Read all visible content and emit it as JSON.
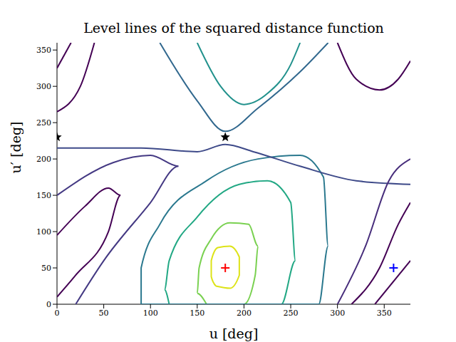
{
  "chart_data": {
    "type": "contour",
    "title": "Level lines of the squared distance function",
    "x_label": "u [deg]",
    "y_label": "u′ [deg]",
    "xlim": [
      0,
      378
    ],
    "ylim": [
      0,
      360
    ],
    "xticks": [
      0,
      50,
      100,
      150,
      200,
      250,
      300,
      350
    ],
    "yticks": [
      0,
      50,
      100,
      150,
      200,
      250,
      300,
      350
    ],
    "grid": false,
    "series": [
      {
        "type": "line",
        "color": "#dde318",
        "values": [
          [
            170,
            25
          ],
          [
            185,
            22
          ],
          [
            195,
            40
          ],
          [
            195,
            65
          ],
          [
            185,
            80
          ],
          [
            172,
            78
          ],
          [
            165,
            60
          ],
          [
            165,
            38
          ],
          [
            170,
            25
          ]
        ]
      },
      {
        "type": "line",
        "color": "#7ad151",
        "values": [
          [
            160,
            0
          ],
          [
            200,
            0
          ],
          [
            212,
            40
          ],
          [
            215,
            80
          ],
          [
            205,
            110
          ],
          [
            185,
            112
          ],
          [
            165,
            90
          ],
          [
            152,
            50
          ],
          [
            150,
            15
          ],
          [
            160,
            0
          ]
        ]
      },
      {
        "type": "line",
        "color": "#22a884",
        "values": [
          [
            120,
            0
          ],
          [
            240,
            0
          ],
          [
            255,
            60
          ],
          [
            250,
            140
          ],
          [
            225,
            170
          ],
          [
            195,
            165
          ],
          [
            150,
            120
          ],
          [
            120,
            60
          ],
          [
            115,
            20
          ],
          [
            120,
            0
          ]
        ]
      },
      {
        "type": "line",
        "color": "#2a788e",
        "values": [
          [
            90,
            0
          ],
          [
            280,
            0
          ],
          [
            290,
            80
          ],
          [
            285,
            175
          ],
          [
            260,
            205
          ],
          [
            215,
            200
          ],
          [
            160,
            170
          ],
          [
            110,
            110
          ],
          [
            90,
            50
          ],
          [
            90,
            0
          ]
        ]
      },
      {
        "type": "line",
        "color": "#21918c",
        "values": [
          [
            150,
            360
          ],
          [
            175,
            300
          ],
          [
            200,
            275
          ],
          [
            225,
            290
          ],
          [
            250,
            330
          ],
          [
            260,
            360
          ]
        ]
      },
      {
        "type": "line",
        "color": "#31688e",
        "values": [
          [
            110,
            360
          ],
          [
            150,
            280
          ],
          [
            180,
            238
          ],
          [
            215,
            270
          ],
          [
            260,
            320
          ],
          [
            290,
            360
          ]
        ]
      },
      {
        "type": "line",
        "color": "#3e4a89",
        "values": [
          [
            0,
            215
          ],
          [
            90,
            215
          ],
          [
            150,
            210
          ],
          [
            180,
            220
          ],
          [
            210,
            210
          ],
          [
            260,
            190
          ],
          [
            320,
            170
          ],
          [
            378,
            165
          ]
        ]
      },
      {
        "type": "line",
        "color": "#440154",
        "values": [
          [
            0,
            95
          ],
          [
            30,
            135
          ],
          [
            55,
            160
          ],
          [
            68,
            150
          ],
          [
            55,
            100
          ],
          [
            20,
            40
          ],
          [
            0,
            10
          ]
        ]
      },
      {
        "type": "line",
        "color": "#443983",
        "values": [
          [
            0,
            150
          ],
          [
            60,
            195
          ],
          [
            100,
            205
          ],
          [
            130,
            190
          ],
          [
            100,
            140
          ],
          [
            50,
            60
          ],
          [
            20,
            0
          ]
        ]
      },
      {
        "type": "line",
        "color": "#440154",
        "values": [
          [
            0,
            265
          ],
          [
            25,
            300
          ],
          [
            40,
            360
          ]
        ]
      },
      {
        "type": "line",
        "color": "#440154",
        "values": [
          [
            0,
            325
          ],
          [
            15,
            360
          ]
        ]
      },
      {
        "type": "line",
        "color": "#440154",
        "values": [
          [
            300,
            360
          ],
          [
            320,
            310
          ],
          [
            345,
            295
          ],
          [
            365,
            310
          ],
          [
            378,
            335
          ]
        ]
      },
      {
        "type": "line",
        "color": "#440154",
        "values": [
          [
            315,
            0
          ],
          [
            345,
            50
          ],
          [
            365,
            110
          ],
          [
            378,
            140
          ]
        ]
      },
      {
        "type": "line",
        "color": "#440154",
        "values": [
          [
            340,
            0
          ],
          [
            378,
            60
          ]
        ]
      },
      {
        "type": "line",
        "color": "#472d7b",
        "values": [
          [
            300,
            0
          ],
          [
            330,
            80
          ],
          [
            355,
            170
          ],
          [
            378,
            200
          ]
        ]
      },
      {
        "type": "scatter",
        "marker": "star",
        "color": "#000000",
        "values": [
          [
            0,
            230
          ],
          [
            180,
            230
          ]
        ]
      },
      {
        "type": "scatter",
        "marker": "plus",
        "color": "#ff0000",
        "values": [
          [
            180,
            50
          ]
        ]
      },
      {
        "type": "scatter",
        "marker": "plus",
        "color": "#0000ff",
        "values": [
          [
            360,
            50
          ]
        ]
      }
    ]
  }
}
